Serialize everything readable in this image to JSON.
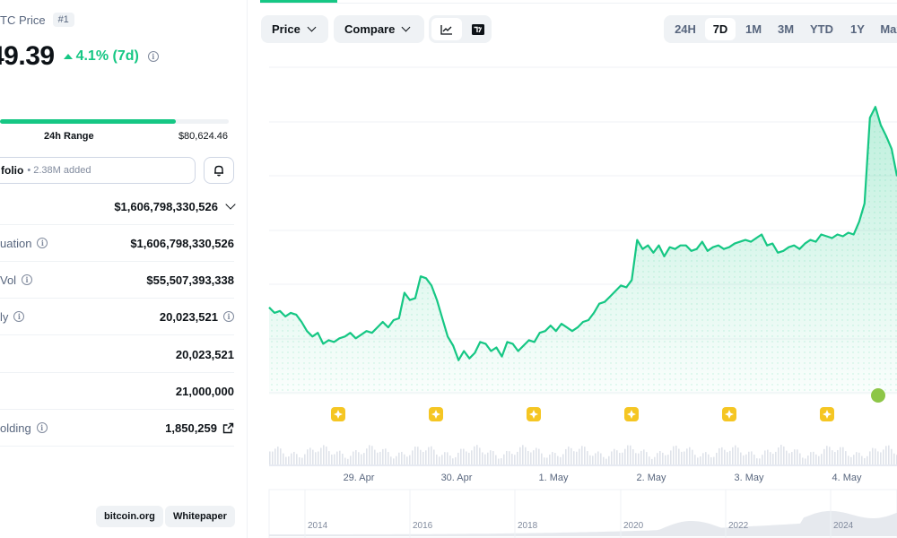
{
  "header": {
    "coin_title": "TC Price",
    "rank": "#1",
    "price": "49.39",
    "change_text": "4.1% (7d)"
  },
  "range24h": {
    "label": "24h Range",
    "high": "$80,624.46",
    "fill_fraction": 0.77
  },
  "portfolio": {
    "label": "folio",
    "added": "• 2.38M added"
  },
  "stats": [
    {
      "label": "",
      "value": "$1,606,798,330,526",
      "has_info": false,
      "suffix": "chevron"
    },
    {
      "label": "uation",
      "value": "$1,606,798,330,526",
      "has_info": true,
      "suffix": ""
    },
    {
      "label": "Vol",
      "value": "$55,507,393,338",
      "has_info": true,
      "suffix": ""
    },
    {
      "label": "ly",
      "value": "20,023,521",
      "has_info": true,
      "suffix": "info"
    },
    {
      "label": "",
      "value": "20,023,521",
      "has_info": false,
      "suffix": ""
    },
    {
      "label": "",
      "value": "21,000,000",
      "has_info": false,
      "suffix": ""
    },
    {
      "label": "olding",
      "value": "1,850,259",
      "has_info": true,
      "suffix": "external"
    }
  ],
  "links": {
    "website": "bitcoin.org",
    "whitepaper": "Whitepaper"
  },
  "toolbar": {
    "price": "Price",
    "compare": "Compare",
    "ranges": [
      "24H",
      "7D",
      "1M",
      "3M",
      "YTD",
      "1Y",
      "Max"
    ],
    "active_range": "7D"
  },
  "chart_data": {
    "type": "area",
    "x_tick_labels": [
      "29. Apr",
      "30. Apr",
      "1. May",
      "2. May",
      "3. May",
      "4. May"
    ],
    "y_values_relative": [
      0.58,
      0.55,
      0.56,
      0.53,
      0.55,
      0.54,
      0.5,
      0.45,
      0.42,
      0.44,
      0.38,
      0.4,
      0.39,
      0.41,
      0.42,
      0.44,
      0.41,
      0.43,
      0.45,
      0.44,
      0.47,
      0.5,
      0.47,
      0.51,
      0.52,
      0.66,
      0.62,
      0.63,
      0.75,
      0.74,
      0.7,
      0.62,
      0.52,
      0.42,
      0.37,
      0.29,
      0.34,
      0.3,
      0.33,
      0.39,
      0.38,
      0.34,
      0.36,
      0.31,
      0.39,
      0.38,
      0.34,
      0.37,
      0.4,
      0.39,
      0.44,
      0.45,
      0.48,
      0.45,
      0.49,
      0.47,
      0.45,
      0.47,
      0.5,
      0.51,
      0.55,
      0.6,
      0.61,
      0.64,
      0.67,
      0.7,
      0.69,
      0.73,
      0.95,
      0.9,
      0.92,
      0.88,
      0.92,
      0.86,
      0.91,
      0.9,
      0.92,
      0.92,
      0.89,
      0.9,
      0.94,
      0.89,
      0.91,
      0.92,
      0.9,
      0.91,
      0.93,
      0.94,
      0.95,
      0.94,
      0.96,
      0.98,
      0.92,
      0.93,
      0.88,
      0.89,
      0.91,
      0.92,
      0.9,
      0.93,
      0.95,
      0.94,
      0.98,
      0.97,
      0.96,
      0.98,
      0.97,
      0.99,
      0.98,
      1.05,
      1.15,
      1.62,
      1.68,
      1.58,
      1.52,
      1.45,
      1.3
    ],
    "overview_year_labels": [
      "2014",
      "2016",
      "2018",
      "2020",
      "2022",
      "2024"
    ],
    "event_markers": 6
  },
  "colors": {
    "accent": "#16c784",
    "marker": "#f5c623",
    "text": "#0d1217",
    "muted": "#58667e"
  }
}
